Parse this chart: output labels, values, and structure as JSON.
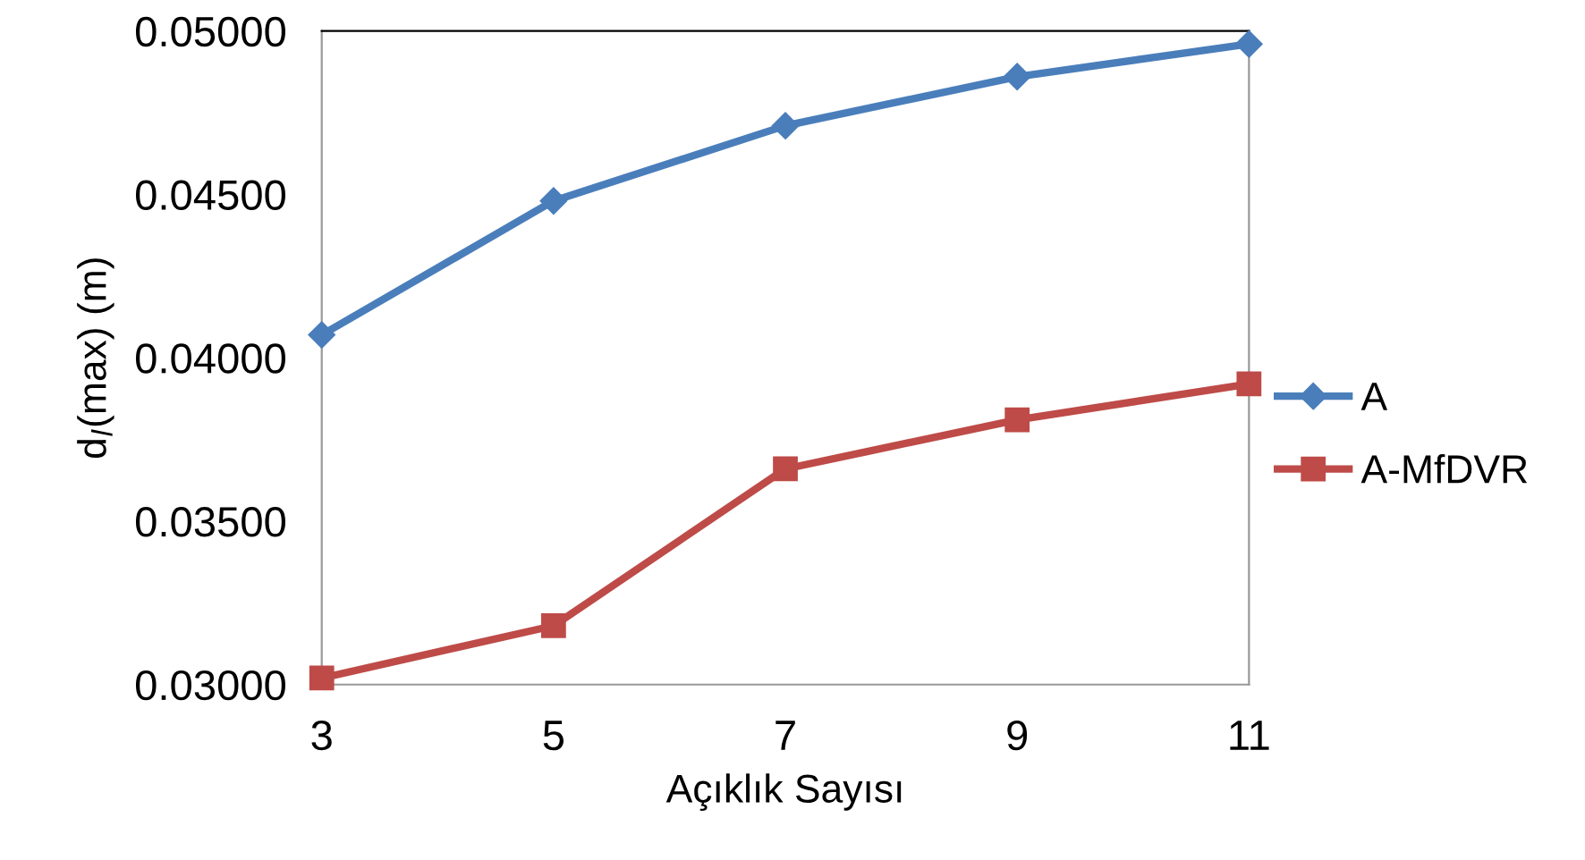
{
  "chart_data": {
    "type": "line",
    "xlabel": "Açıklık Sayısı",
    "ylabel": "d$_{l}$(max) (m)",
    "categories": [
      "3",
      "5",
      "7",
      "9",
      "11"
    ],
    "series": [
      {
        "name": "A",
        "color": "#4a7ebb",
        "marker": "diamond",
        "values": [
          0.0407,
          0.0448,
          0.0471,
          0.0486,
          0.0496
        ]
      },
      {
        "name": "A-MfDVR",
        "color": "#be4b48",
        "marker": "square",
        "values": [
          0.0302,
          0.0318,
          0.0366,
          0.0381,
          0.0392
        ]
      }
    ],
    "ylim": [
      0.03,
      0.05
    ],
    "yticks": [
      {
        "value": 0.03,
        "label": "0.03000"
      },
      {
        "value": 0.035,
        "label": "0.03500"
      },
      {
        "value": 0.04,
        "label": "0.04000"
      },
      {
        "value": 0.045,
        "label": "0.04500"
      },
      {
        "value": 0.05,
        "label": "0.05000"
      }
    ],
    "legend": "right",
    "line_style": "solid"
  }
}
